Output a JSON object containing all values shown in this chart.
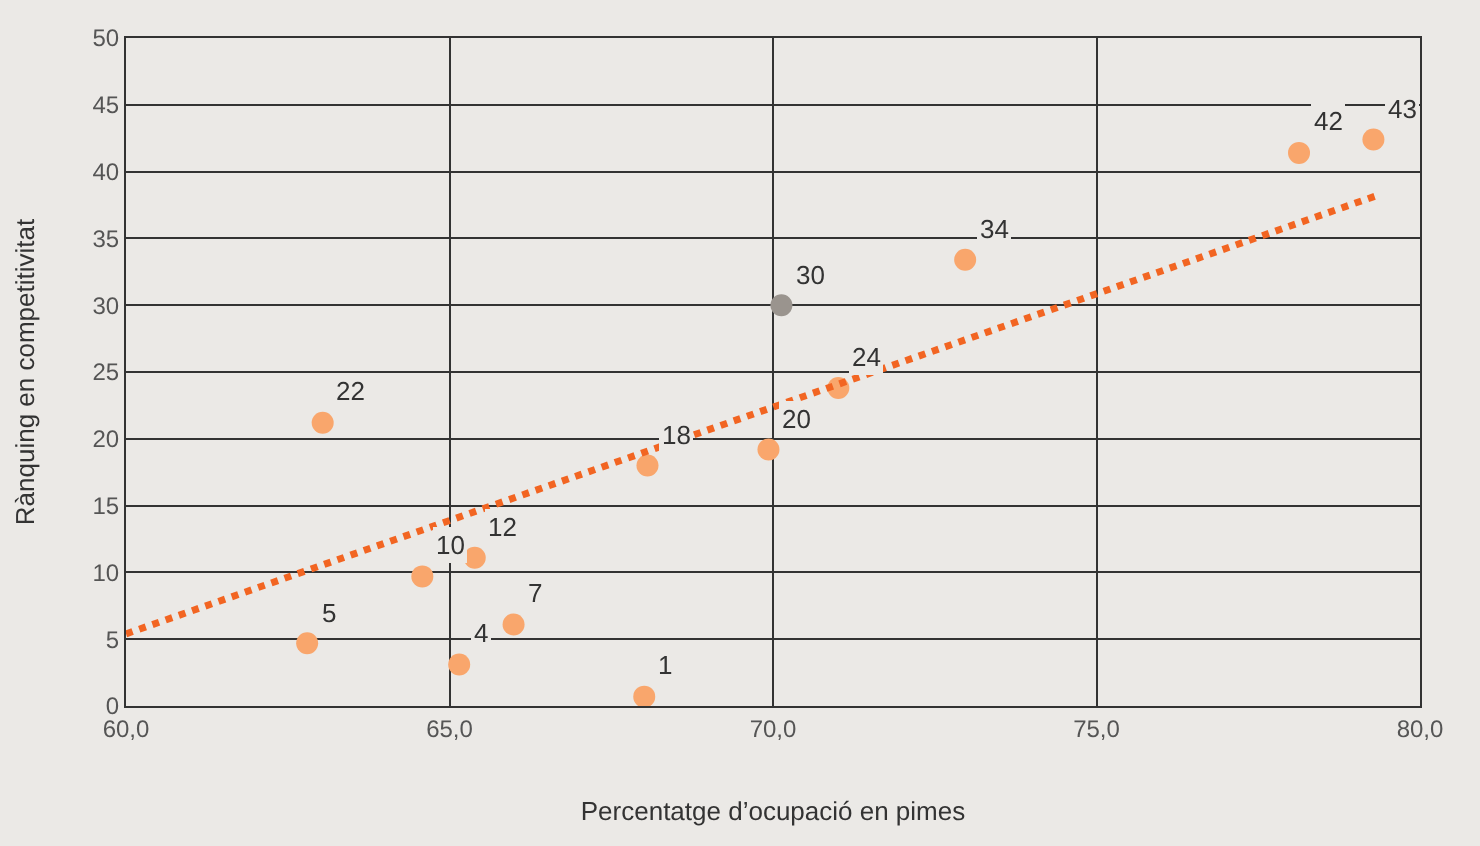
{
  "chart_data": {
    "type": "scatter",
    "xlabel": "Percentatge d’ocupació en pimes",
    "ylabel": "Rànquing en competitivitat",
    "series": [
      {
        "marker": "circle",
        "x": [
          63.04,
          62.8,
          64.58,
          65.39,
          65.99,
          65.15,
          68.01,
          68.06,
          69.93,
          70.13,
          71.01,
          72.97,
          78.13,
          79.28
        ],
        "values": [
          21.2,
          4.7,
          9.7,
          11.1,
          6.1,
          3.1,
          0.7,
          18.0,
          19.2,
          30.0,
          23.8,
          33.4,
          41.4,
          42.4
        ],
        "colors": [
          "#f9a66c",
          "#f9a66c",
          "#f9a66c",
          "#f9a66c",
          "#f9a66c",
          "#f9a66c",
          "#f9a66c",
          "#f9a66c",
          "#f9a66c",
          "#9a948e",
          "#f9a66c",
          "#f9a66c",
          "#f9a66c",
          "#f9a66c"
        ]
      },
      {
        "type": "line",
        "line_style": "dotted",
        "color": "#f26522",
        "x": [
          60,
          79.33
        ],
        "values": [
          5.4,
          38.2
        ]
      }
    ],
    "annotations": [
      {
        "text": "22",
        "x": 63.04,
        "y": 21.2
      },
      {
        "text": "5",
        "x": 62.8,
        "y": 4.7
      },
      {
        "text": "10",
        "x": 64.58,
        "y": 9.7
      },
      {
        "text": "12",
        "x": 65.39,
        "y": 11.1
      },
      {
        "text": "7",
        "x": 65.99,
        "y": 6.1
      },
      {
        "text": "4",
        "x": 65.15,
        "y": 3.1
      },
      {
        "text": "1",
        "x": 68.01,
        "y": 0.7
      },
      {
        "text": "18",
        "x": 68.06,
        "y": 18.0
      },
      {
        "text": "20",
        "x": 69.93,
        "y": 19.2
      },
      {
        "text": "30",
        "x": 70.13,
        "y": 30.0
      },
      {
        "text": "24",
        "x": 71.01,
        "y": 23.8
      },
      {
        "text": "34",
        "x": 72.97,
        "y": 33.4
      },
      {
        "text": "42",
        "x": 78.13,
        "y": 41.4
      },
      {
        "text": "43",
        "x": 79.28,
        "y": 42.4
      }
    ],
    "xlim": [
      60,
      80
    ],
    "xticks": [
      {
        "value": 60,
        "label": "60,0"
      },
      {
        "value": 65,
        "label": "65,0"
      },
      {
        "value": 70,
        "label": "70,0"
      },
      {
        "value": 75,
        "label": "75,0"
      },
      {
        "value": 80,
        "label": "80,0"
      }
    ],
    "ylim": [
      0,
      50
    ],
    "yticks": [
      0,
      5,
      10,
      15,
      20,
      25,
      30,
      35,
      40,
      45,
      50
    ],
    "grid": true
  }
}
